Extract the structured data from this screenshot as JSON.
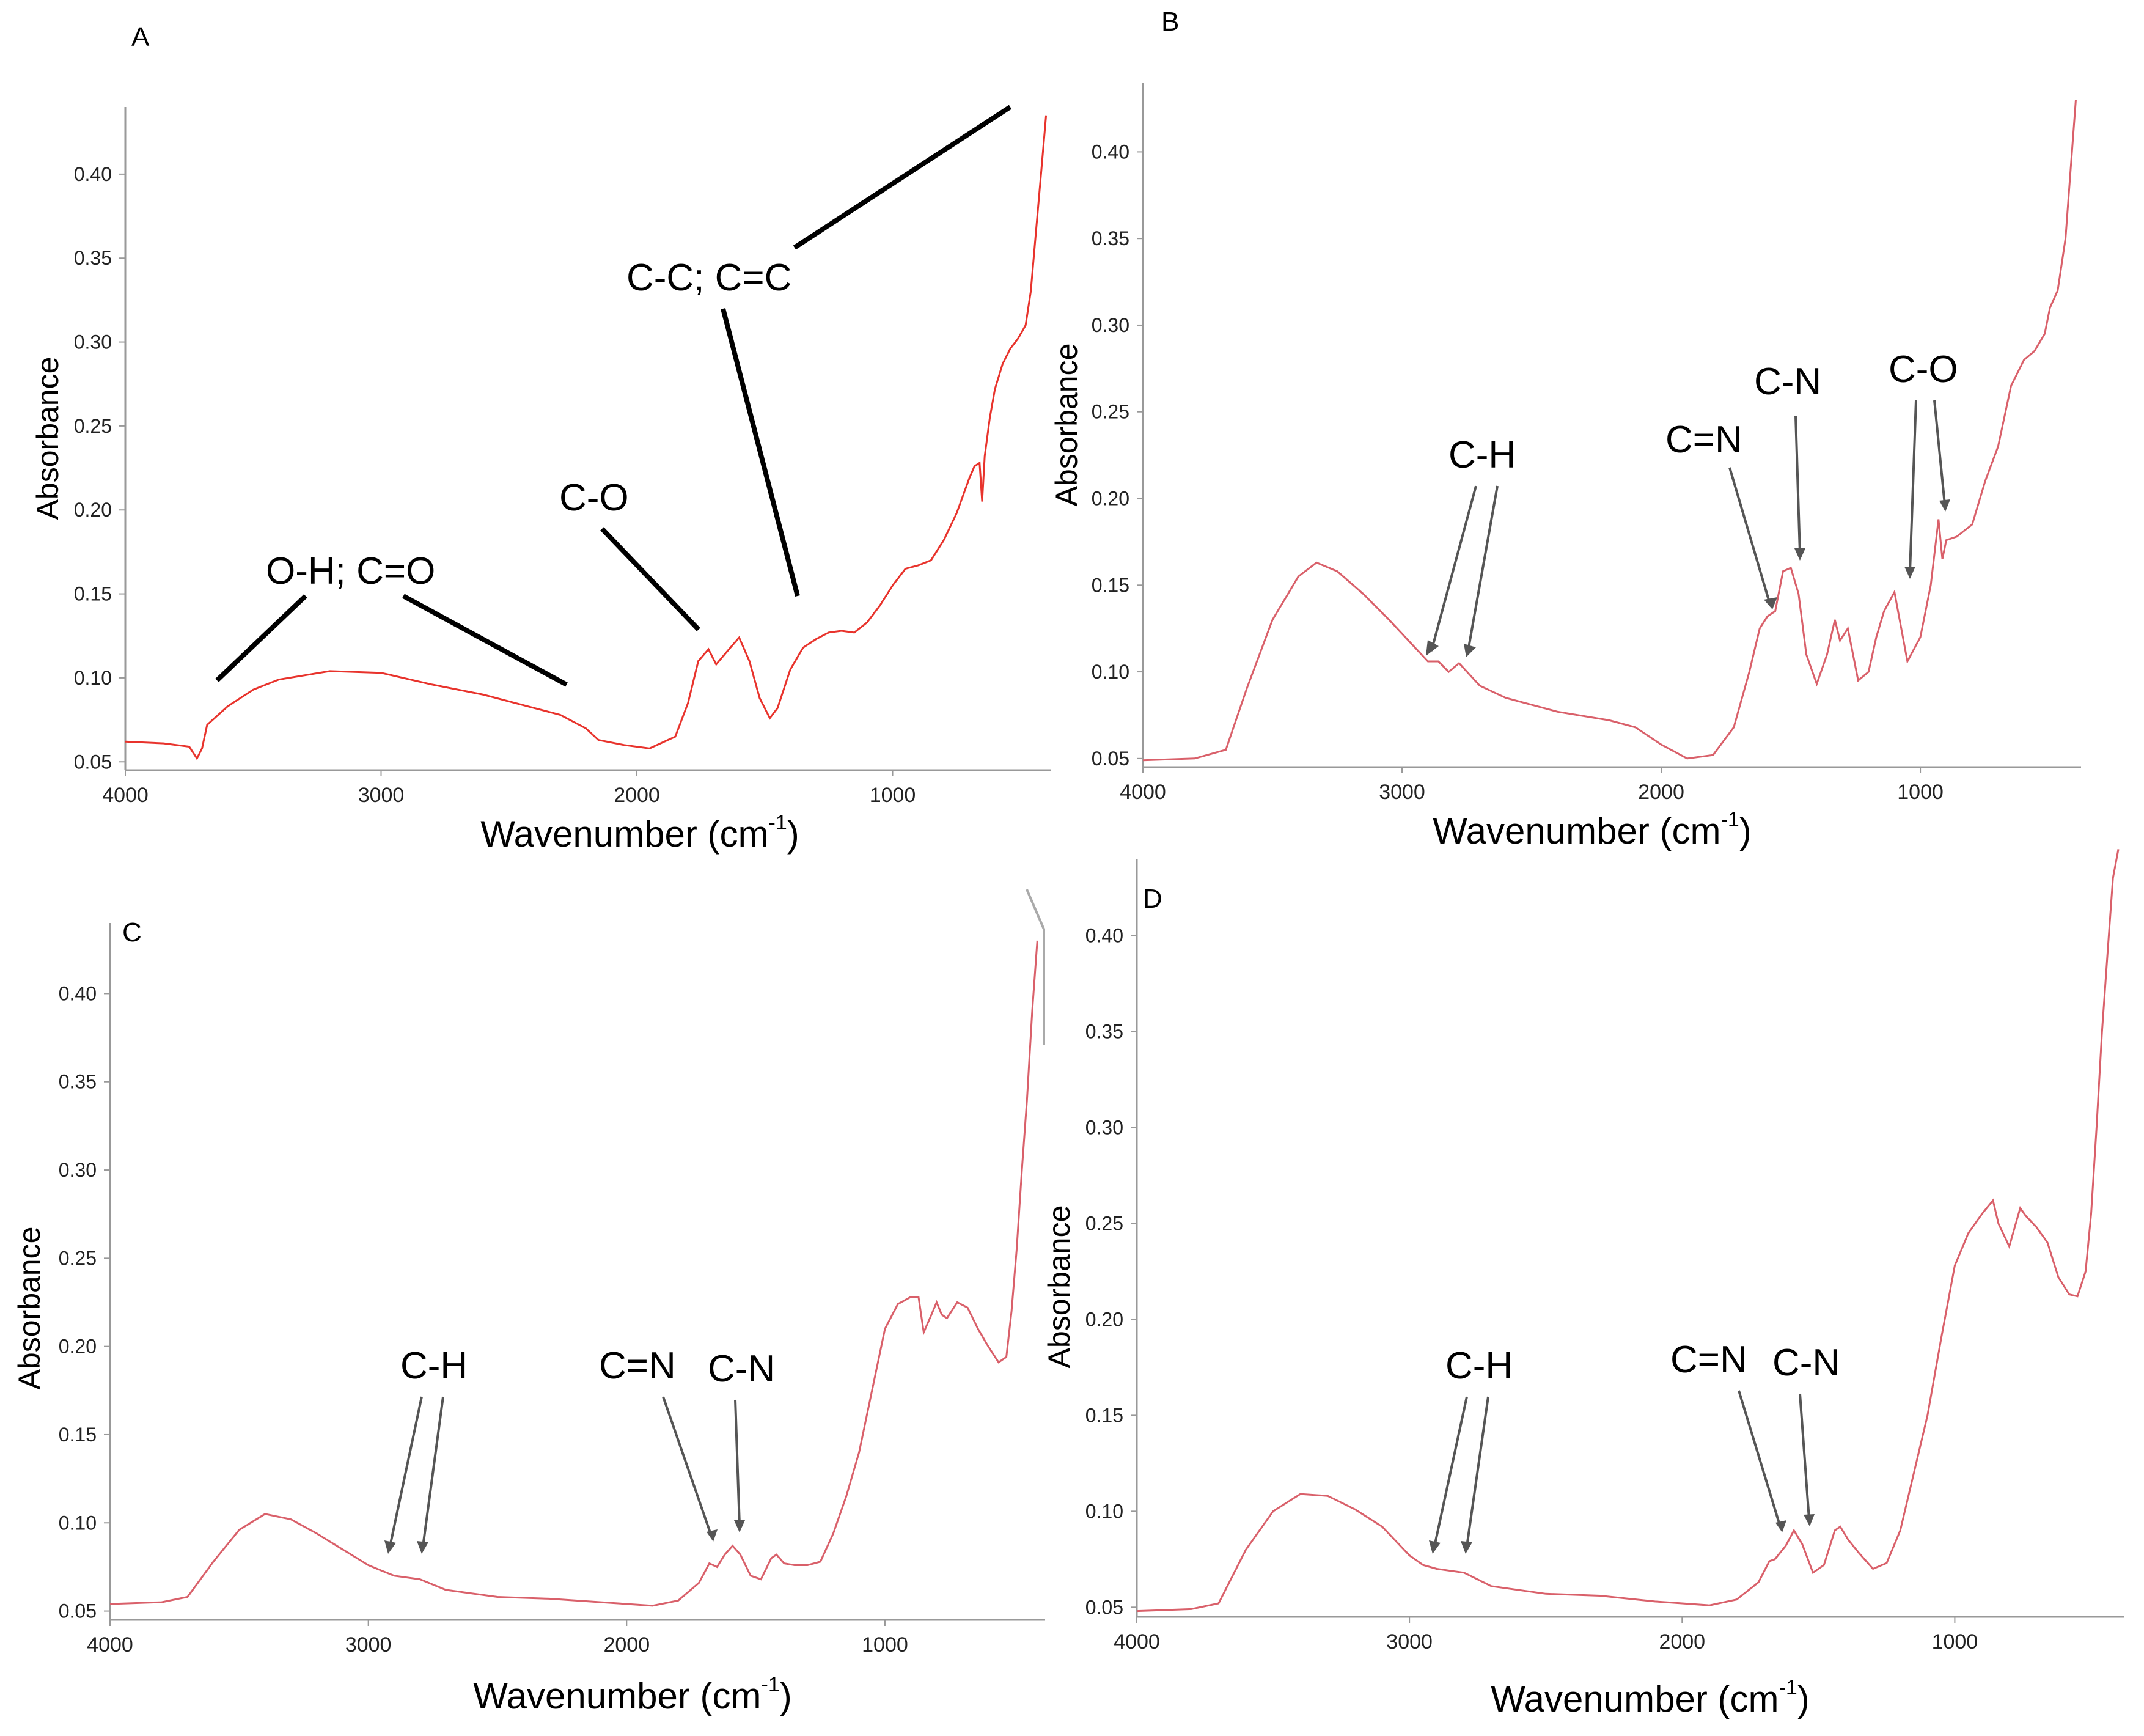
{
  "chart_data": [
    {
      "panel": "A",
      "type": "line",
      "xlabel": "Wavenumber (cm",
      "xlabel_sup": "-1",
      "xlabel_end": ")",
      "ylabel": "Absorbance",
      "xlim": [
        4000,
        380
      ],
      "ylim": [
        0.045,
        0.44
      ],
      "xticks": [
        4000,
        3000,
        2000,
        1000
      ],
      "yticks": [
        0.05,
        0.1,
        0.15,
        0.2,
        0.25,
        0.3,
        0.35,
        0.4
      ],
      "ytick_labels": [
        "0.05",
        "0.10",
        "0.15",
        "0.20",
        "0.25",
        "0.30",
        "0.35",
        "0.40"
      ],
      "line_color": "#e8332c",
      "series": [
        {
          "x": [
            4000,
            3850,
            3750,
            3720,
            3700,
            3680,
            3600,
            3500,
            3400,
            3200,
            3000,
            2800,
            2600,
            2400,
            2300,
            2200,
            2150,
            2050,
            1950,
            1850,
            1800,
            1760,
            1720,
            1690,
            1640,
            1600,
            1560,
            1520,
            1480,
            1450,
            1400,
            1350,
            1300,
            1250,
            1200,
            1150,
            1100,
            1050,
            1000,
            950,
            900,
            850,
            800,
            750,
            700,
            680,
            660,
            650,
            640,
            620,
            600,
            570,
            540,
            510,
            480,
            460,
            440,
            420,
            400
          ],
          "y": [
            0.062,
            0.061,
            0.059,
            0.052,
            0.058,
            0.072,
            0.083,
            0.093,
            0.099,
            0.104,
            0.103,
            0.096,
            0.09,
            0.082,
            0.078,
            0.07,
            0.063,
            0.06,
            0.058,
            0.065,
            0.085,
            0.11,
            0.117,
            0.108,
            0.117,
            0.124,
            0.11,
            0.088,
            0.076,
            0.082,
            0.105,
            0.118,
            0.123,
            0.127,
            0.128,
            0.127,
            0.133,
            0.143,
            0.155,
            0.165,
            0.167,
            0.17,
            0.182,
            0.198,
            0.219,
            0.226,
            0.228,
            0.205,
            0.232,
            0.255,
            0.272,
            0.287,
            0.296,
            0.302,
            0.31,
            0.33,
            0.365,
            0.4,
            0.435
          ]
        }
      ],
      "annotations": [
        {
          "text": "O-H; C=O"
        },
        {
          "text": "C-O"
        },
        {
          "text": "C-C; C=C"
        }
      ]
    },
    {
      "panel": "B",
      "type": "line",
      "xlabel": "Wavenumber (cm",
      "xlabel_sup": "-1",
      "xlabel_end": ")",
      "ylabel": "Absorbance",
      "xlim": [
        4000,
        380
      ],
      "ylim": [
        0.045,
        0.44
      ],
      "xticks": [
        4000,
        3000,
        2000,
        1000
      ],
      "yticks": [
        0.05,
        0.1,
        0.15,
        0.2,
        0.25,
        0.3,
        0.35,
        0.4
      ],
      "ytick_labels": [
        "0.05",
        "0.10",
        "0.15",
        "0.20",
        "0.25",
        "0.30",
        "0.35",
        "0.40"
      ],
      "line_color": "#d9606a",
      "series": [
        {
          "x": [
            4000,
            3800,
            3680,
            3600,
            3500,
            3400,
            3330,
            3250,
            3150,
            3050,
            2950,
            2900,
            2860,
            2820,
            2780,
            2700,
            2600,
            2400,
            2200,
            2100,
            2000,
            1900,
            1800,
            1720,
            1660,
            1620,
            1590,
            1560,
            1530,
            1500,
            1470,
            1440,
            1400,
            1360,
            1330,
            1310,
            1280,
            1260,
            1240,
            1200,
            1170,
            1140,
            1100,
            1080,
            1050,
            1000,
            960,
            930,
            915,
            900,
            860,
            800,
            750,
            700,
            650,
            600,
            560,
            520,
            500,
            470,
            440,
            420,
            400
          ],
          "y": [
            0.049,
            0.05,
            0.055,
            0.09,
            0.13,
            0.155,
            0.163,
            0.158,
            0.145,
            0.13,
            0.114,
            0.106,
            0.106,
            0.1,
            0.105,
            0.092,
            0.085,
            0.077,
            0.072,
            0.068,
            0.058,
            0.05,
            0.052,
            0.068,
            0.1,
            0.125,
            0.132,
            0.135,
            0.158,
            0.16,
            0.145,
            0.11,
            0.093,
            0.11,
            0.13,
            0.118,
            0.125,
            0.11,
            0.095,
            0.1,
            0.12,
            0.135,
            0.146,
            0.13,
            0.106,
            0.12,
            0.15,
            0.188,
            0.165,
            0.176,
            0.178,
            0.185,
            0.21,
            0.23,
            0.265,
            0.28,
            0.285,
            0.295,
            0.31,
            0.32,
            0.35,
            0.39,
            0.43
          ]
        }
      ],
      "annotations": [
        {
          "text": "C-H"
        },
        {
          "text": "C=N"
        },
        {
          "text": "C-N"
        },
        {
          "text": "C-O"
        }
      ]
    },
    {
      "panel": "C",
      "type": "line",
      "xlabel": "Wavenumber (cm",
      "xlabel_sup": "-1",
      "xlabel_end": ")",
      "ylabel": "Absorbance",
      "xlim": [
        4000,
        380
      ],
      "ylim": [
        0.045,
        0.44
      ],
      "xticks": [
        4000,
        3000,
        2000,
        1000
      ],
      "yticks": [
        0.05,
        0.1,
        0.15,
        0.2,
        0.25,
        0.3,
        0.35,
        0.4
      ],
      "ytick_labels": [
        "0.05",
        "0.10",
        "0.15",
        "0.20",
        "0.25",
        "0.30",
        "0.35",
        "0.40"
      ],
      "line_color": "#d9606a",
      "series": [
        {
          "x": [
            4000,
            3800,
            3700,
            3600,
            3500,
            3400,
            3300,
            3200,
            3100,
            3000,
            2950,
            2900,
            2850,
            2800,
            2700,
            2500,
            2300,
            2100,
            2000,
            1900,
            1800,
            1720,
            1680,
            1650,
            1620,
            1590,
            1560,
            1520,
            1480,
            1440,
            1420,
            1390,
            1350,
            1300,
            1250,
            1200,
            1150,
            1100,
            1050,
            1000,
            950,
            900,
            870,
            850,
            820,
            800,
            780,
            760,
            720,
            680,
            640,
            600,
            560,
            530,
            510,
            490,
            470,
            450,
            430,
            410
          ],
          "y": [
            0.054,
            0.055,
            0.058,
            0.078,
            0.096,
            0.105,
            0.102,
            0.094,
            0.085,
            0.076,
            0.073,
            0.07,
            0.069,
            0.068,
            0.062,
            0.058,
            0.057,
            0.055,
            0.054,
            0.053,
            0.056,
            0.066,
            0.077,
            0.075,
            0.082,
            0.087,
            0.082,
            0.07,
            0.068,
            0.08,
            0.082,
            0.077,
            0.076,
            0.076,
            0.078,
            0.094,
            0.115,
            0.14,
            0.175,
            0.21,
            0.224,
            0.228,
            0.228,
            0.208,
            0.218,
            0.225,
            0.218,
            0.216,
            0.225,
            0.222,
            0.21,
            0.2,
            0.191,
            0.194,
            0.22,
            0.255,
            0.3,
            0.34,
            0.39,
            0.43
          ]
        }
      ],
      "annotations": [
        {
          "text": "C-H"
        },
        {
          "text": "C=N"
        },
        {
          "text": "C-N"
        }
      ]
    },
    {
      "panel": "D",
      "type": "line",
      "xlabel": "Wavenumber (cm",
      "xlabel_sup": "-1",
      "xlabel_end": ")",
      "ylabel": "Absorbance",
      "xlim": [
        4000,
        380
      ],
      "ylim": [
        0.045,
        0.44
      ],
      "xticks": [
        4000,
        3000,
        2000,
        1000
      ],
      "yticks": [
        0.05,
        0.1,
        0.15,
        0.2,
        0.25,
        0.3,
        0.35,
        0.4
      ],
      "ytick_labels": [
        "0.05",
        "0.10",
        "0.15",
        "0.20",
        "0.25",
        "0.30",
        "0.35",
        "0.40"
      ],
      "line_color": "#d9606a",
      "series": [
        {
          "x": [
            4000,
            3800,
            3700,
            3600,
            3500,
            3400,
            3300,
            3200,
            3100,
            3000,
            2950,
            2900,
            2850,
            2800,
            2700,
            2500,
            2300,
            2100,
            2000,
            1900,
            1800,
            1720,
            1680,
            1660,
            1620,
            1590,
            1560,
            1520,
            1480,
            1440,
            1420,
            1390,
            1350,
            1300,
            1250,
            1200,
            1150,
            1100,
            1050,
            1000,
            950,
            900,
            860,
            840,
            800,
            780,
            760,
            740,
            700,
            660,
            620,
            580,
            550,
            520,
            500,
            480,
            460,
            440,
            420,
            400
          ],
          "y": [
            0.048,
            0.049,
            0.052,
            0.08,
            0.1,
            0.109,
            0.108,
            0.101,
            0.092,
            0.077,
            0.072,
            0.07,
            0.069,
            0.068,
            0.061,
            0.057,
            0.056,
            0.053,
            0.052,
            0.051,
            0.054,
            0.063,
            0.074,
            0.075,
            0.082,
            0.09,
            0.083,
            0.068,
            0.072,
            0.09,
            0.092,
            0.085,
            0.078,
            0.07,
            0.073,
            0.09,
            0.12,
            0.15,
            0.19,
            0.228,
            0.245,
            0.255,
            0.262,
            0.25,
            0.238,
            0.248,
            0.258,
            0.254,
            0.248,
            0.24,
            0.222,
            0.213,
            0.212,
            0.225,
            0.255,
            0.3,
            0.35,
            0.39,
            0.43,
            0.445
          ]
        }
      ],
      "annotations": [
        {
          "text": "C-H"
        },
        {
          "text": "C=N"
        },
        {
          "text": "C-N"
        }
      ]
    }
  ]
}
